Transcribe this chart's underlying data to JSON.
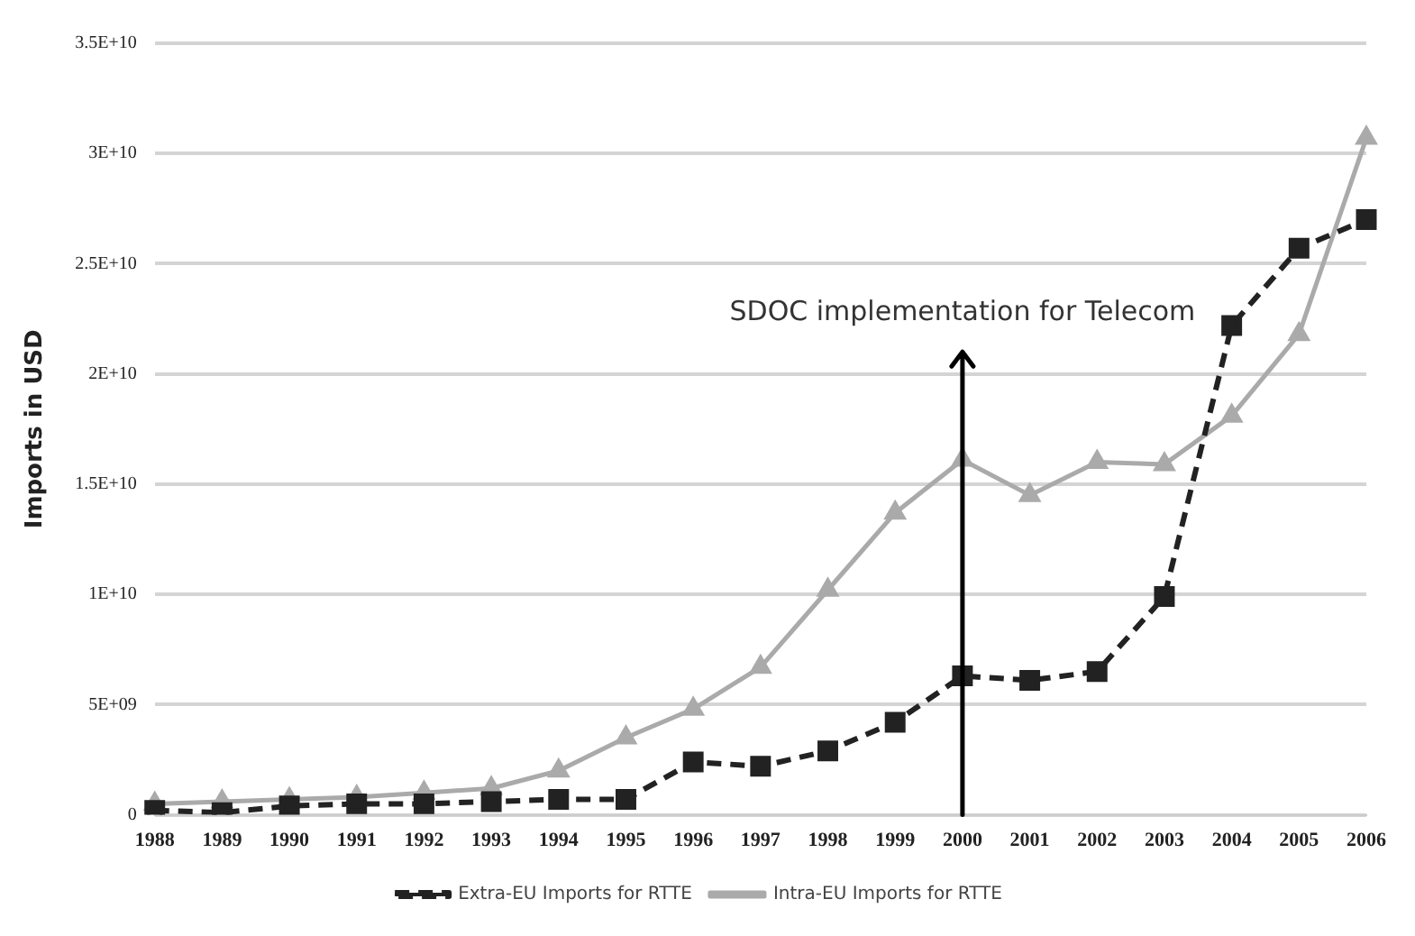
{
  "chart_data": {
    "type": "line",
    "ylabel": "Imports in USD",
    "categories": [
      "1988",
      "1989",
      "1990",
      "1991",
      "1992",
      "1993",
      "1994",
      "1995",
      "1996",
      "1997",
      "1998",
      "1999",
      "2000",
      "2001",
      "2002",
      "2003",
      "2004",
      "2005",
      "2006"
    ],
    "series": [
      {
        "name": "Extra-EU Imports for RTTE",
        "color": "#222222",
        "marker": "square",
        "line_style": "dashed",
        "values": [
          200000000,
          100000000,
          400000000,
          500000000,
          500000000,
          600000000,
          700000000,
          700000000,
          2400000000,
          2200000000,
          2900000000,
          4200000000,
          6300000000,
          6100000000,
          6500000000,
          9900000000,
          22200000000,
          25700000000,
          27000000000
        ]
      },
      {
        "name": "Intra-EU Imports for RTTE",
        "color": "#aaaaaa",
        "marker": "triangle",
        "line_style": "solid",
        "values": [
          500000000,
          600000000,
          700000000,
          800000000,
          1000000000,
          1200000000,
          2000000000,
          3500000000,
          4800000000,
          6700000000,
          10200000000,
          13700000000,
          16100000000,
          14500000000,
          16000000000,
          15900000000,
          18100000000,
          21800000000,
          30700000000
        ]
      }
    ],
    "ylim": [
      0,
      35000000000
    ],
    "yticks": [
      0,
      {
        "value": 5000000000,
        "label": "5E+09"
      },
      {
        "value": 10000000000,
        "label": "1E+10"
      },
      {
        "value": 15000000000,
        "label": "1.5E+10"
      },
      {
        "value": 20000000000,
        "label": "2E+10"
      },
      {
        "value": 25000000000,
        "label": "2.5E+10"
      },
      {
        "value": 30000000000,
        "label": "3E+10"
      },
      {
        "value": 35000000000,
        "label": "3.5E+10"
      }
    ],
    "grid": "y",
    "legend": "bottom",
    "annotations": [
      "SDOC implementation for Telecom"
    ]
  }
}
